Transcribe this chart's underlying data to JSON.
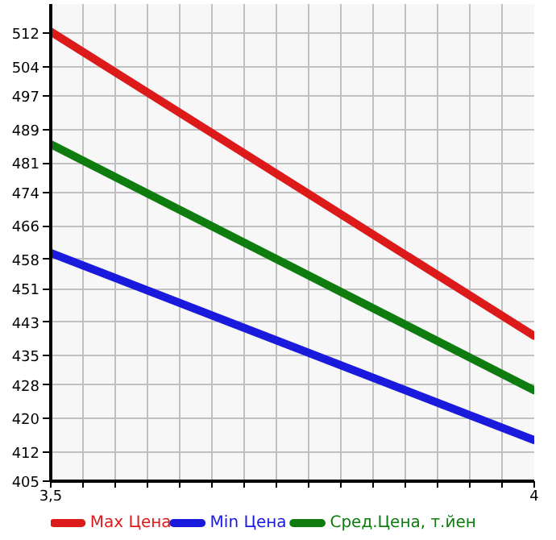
{
  "chart_data": {
    "type": "line",
    "x": [
      3.5,
      4
    ],
    "series": [
      {
        "name": "Max Цена",
        "color": "#dd1a1a",
        "values": [
          512.4,
          439.7
        ]
      },
      {
        "name": "Min Цена",
        "color": "#1a1add",
        "values": [
          459.5,
          414.8
        ]
      },
      {
        "name": "Сред.Цена, т.йен",
        "color": "#0e7c0e",
        "values": [
          485.5,
          426.7
        ]
      }
    ],
    "xlim": [
      3.5,
      4
    ],
    "xticks": [
      {
        "value": 3.5,
        "label": "3,5"
      },
      {
        "value": 3.5333,
        "label": null
      },
      {
        "value": 3.5667,
        "label": null
      },
      {
        "value": 3.6,
        "label": null
      },
      {
        "value": 3.6333,
        "label": null
      },
      {
        "value": 3.6667,
        "label": null
      },
      {
        "value": 3.7,
        "label": null
      },
      {
        "value": 3.7333,
        "label": null
      },
      {
        "value": 3.7667,
        "label": null
      },
      {
        "value": 3.8,
        "label": null
      },
      {
        "value": 3.8333,
        "label": null
      },
      {
        "value": 3.8667,
        "label": null
      },
      {
        "value": 3.9,
        "label": null
      },
      {
        "value": 3.9333,
        "label": null
      },
      {
        "value": 3.9667,
        "label": null
      },
      {
        "value": 4,
        "label": "4"
      }
    ],
    "ylim": [
      405,
      519
    ],
    "yticks": [
      405,
      412,
      420,
      428,
      435,
      443,
      451,
      458,
      466,
      474,
      481,
      489,
      497,
      504,
      512
    ],
    "grid": true,
    "legend": "bottom",
    "marker": "none",
    "line_style": "solid"
  }
}
